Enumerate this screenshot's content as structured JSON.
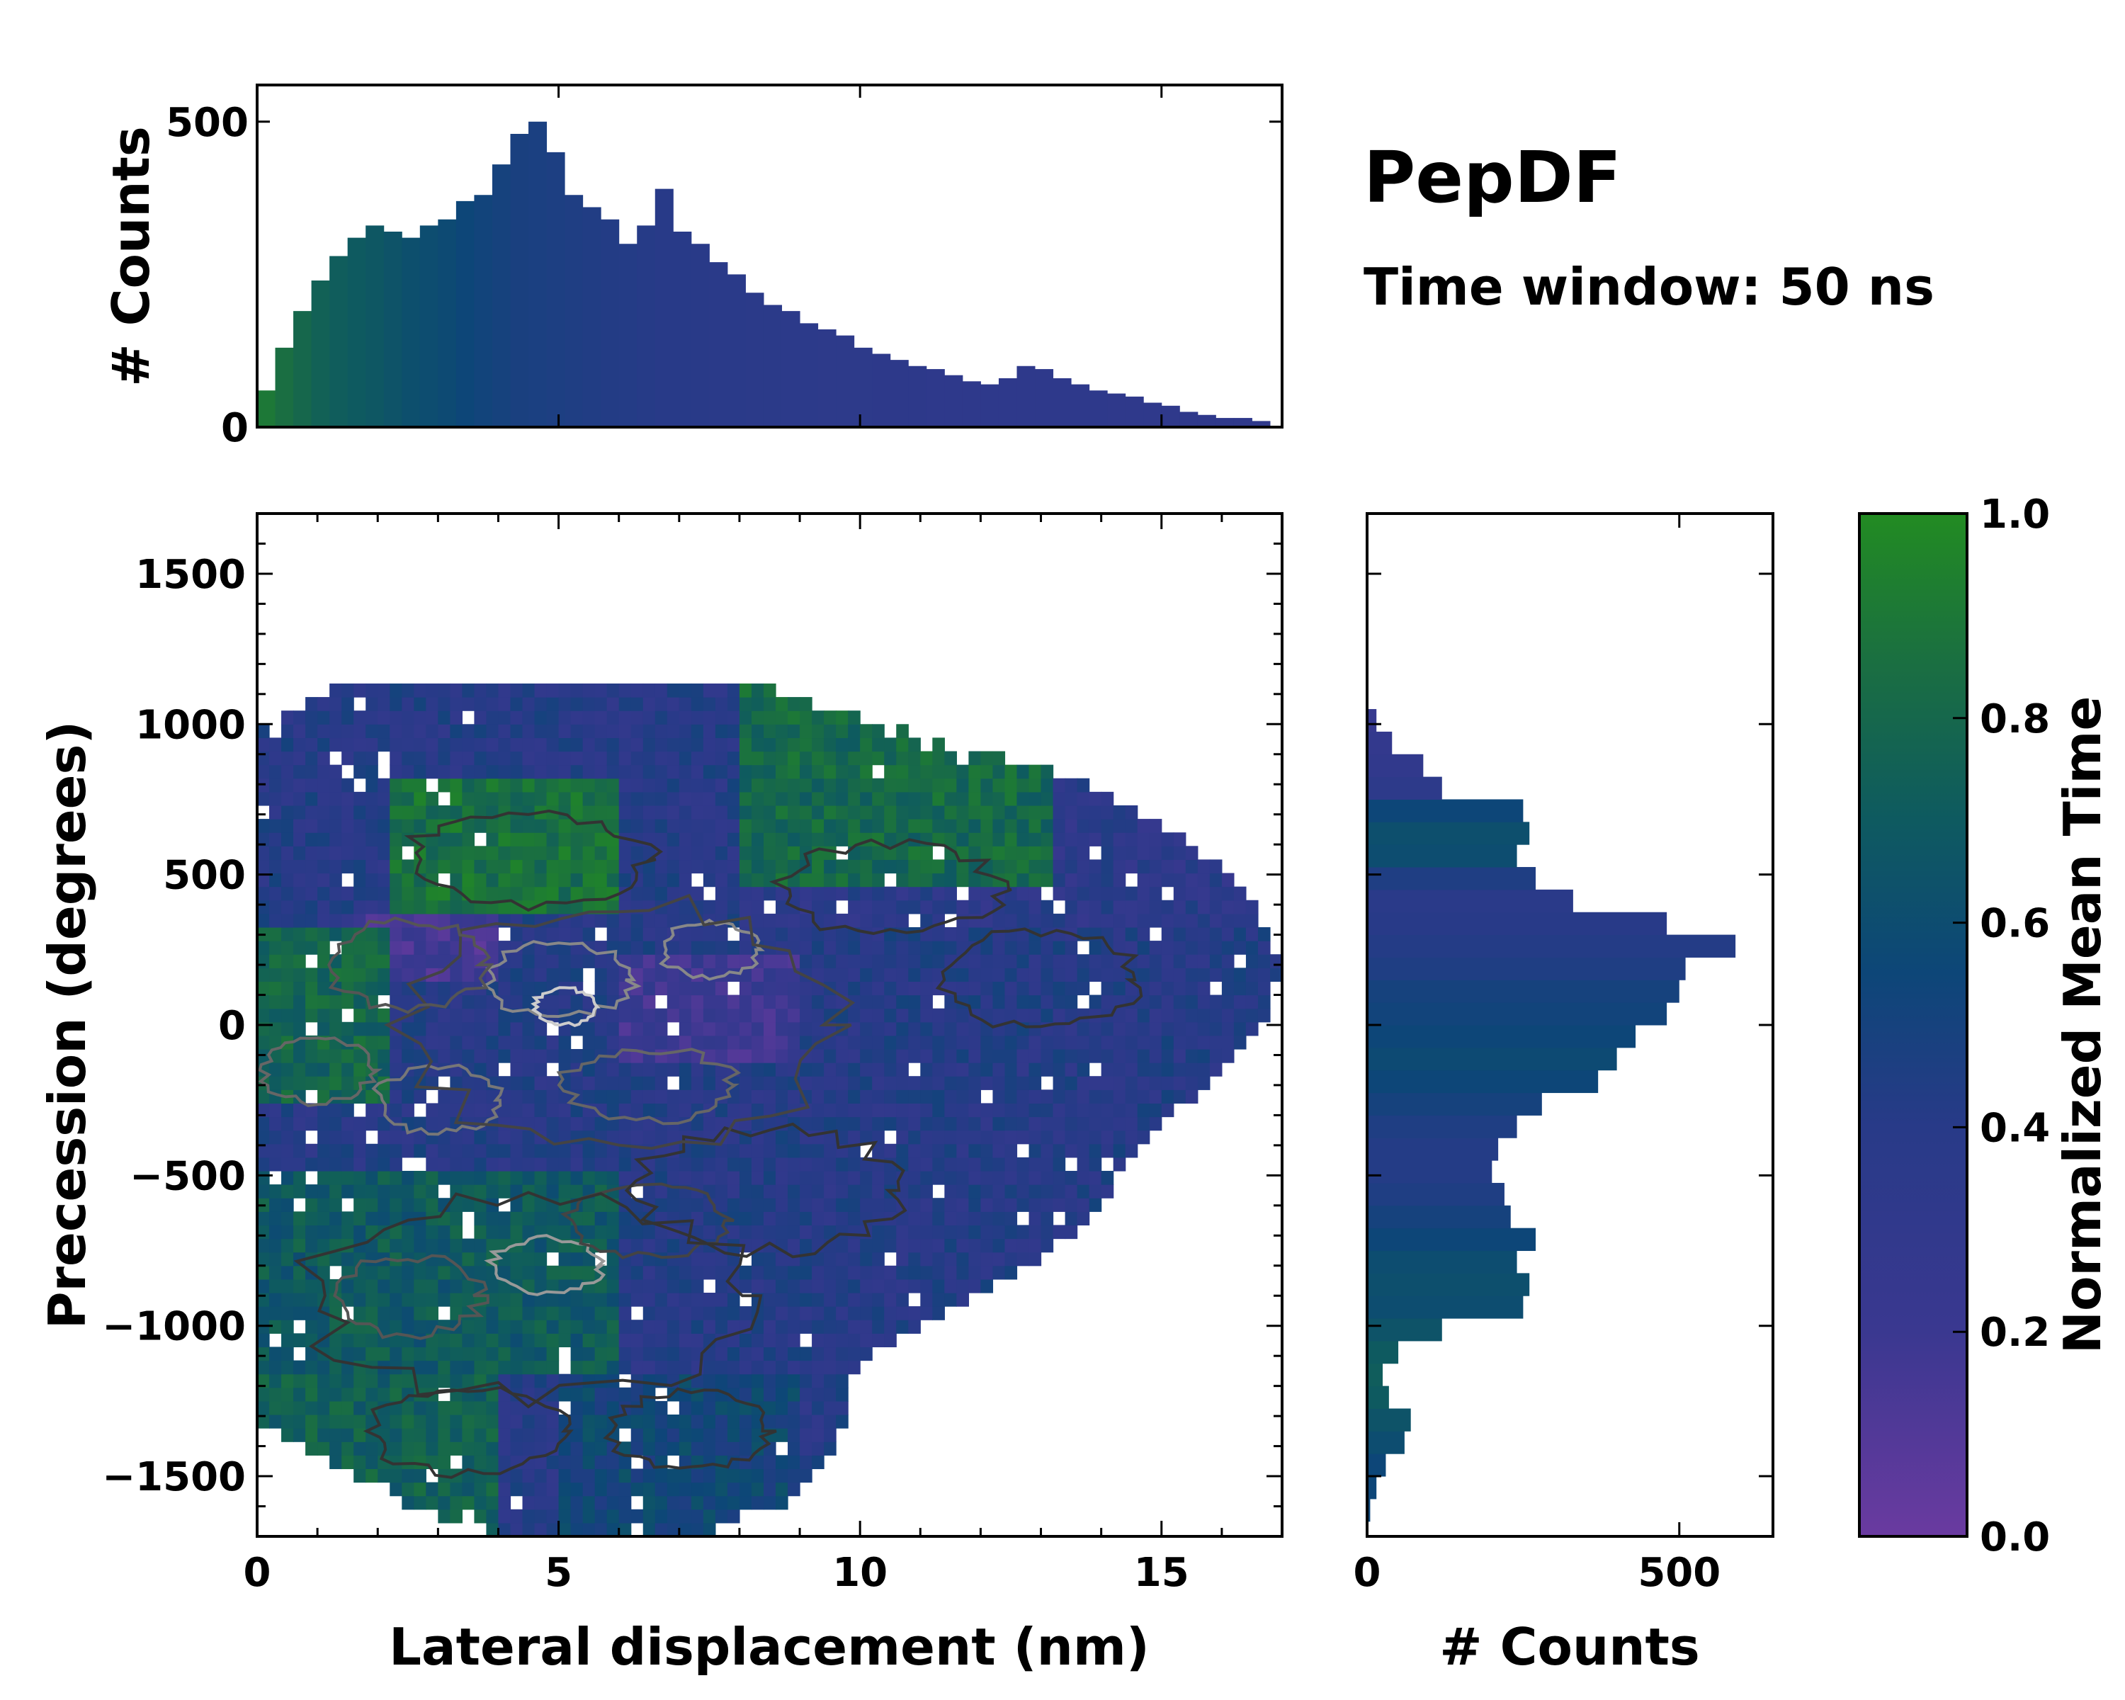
{
  "chart_data": {
    "type": "heatmap",
    "title": "PepDF",
    "subtitle": "Time window: 50 ns",
    "main": {
      "xlabel": "Lateral displacement (nm)",
      "ylabel": "Precession (degrees)",
      "xlim": [
        0,
        17
      ],
      "ylim": [
        -1700,
        1700
      ],
      "xticks": [
        0,
        5,
        10,
        15
      ],
      "xtick_labels": [
        "0",
        "5",
        "10",
        "15"
      ],
      "yticks": [
        -1500,
        -1000,
        -500,
        0,
        500,
        1000,
        1500
      ],
      "ytick_labels": [
        "−1500",
        "−1000",
        "−500",
        "0",
        "500",
        "1000",
        "1500"
      ],
      "contour_note": "density contours"
    },
    "top_hist": {
      "ylabel": "# Counts",
      "ylim": [
        0,
        560
      ],
      "yticks": [
        0,
        500
      ],
      "ytick_labels": [
        "0",
        "500"
      ],
      "x": [
        0.3,
        0.6,
        0.9,
        1.2,
        1.5,
        1.8,
        2.1,
        2.4,
        2.7,
        3.0,
        3.3,
        3.6,
        3.9,
        4.2,
        4.5,
        4.8,
        5.1,
        5.4,
        5.7,
        6.0,
        6.3,
        6.6,
        6.9,
        7.2,
        7.5,
        7.8,
        8.1,
        8.4,
        8.7,
        9.0,
        9.3,
        9.6,
        9.9,
        10.2,
        10.5,
        10.8,
        11.1,
        11.4,
        11.7,
        12.0,
        12.3,
        12.6,
        12.9,
        13.2,
        13.5,
        13.8,
        14.1,
        14.4,
        14.7,
        15.0,
        15.3,
        15.6,
        15.9,
        16.2,
        16.5,
        16.8
      ],
      "values": [
        60,
        130,
        190,
        240,
        280,
        310,
        330,
        320,
        310,
        330,
        340,
        370,
        380,
        430,
        480,
        500,
        450,
        380,
        360,
        340,
        300,
        330,
        390,
        320,
        300,
        270,
        250,
        220,
        200,
        190,
        170,
        160,
        150,
        130,
        120,
        110,
        100,
        95,
        85,
        75,
        70,
        80,
        100,
        95,
        80,
        70,
        60,
        55,
        50,
        40,
        35,
        25,
        20,
        15,
        15,
        10
      ],
      "colors": [
        0.9,
        0.85,
        0.8,
        0.75,
        0.72,
        0.7,
        0.68,
        0.65,
        0.62,
        0.6,
        0.58,
        0.55,
        0.52,
        0.5,
        0.48,
        0.47,
        0.46,
        0.45,
        0.44,
        0.43,
        0.42,
        0.41,
        0.4,
        0.4,
        0.39,
        0.38,
        0.38,
        0.37,
        0.37,
        0.36,
        0.36,
        0.35,
        0.35,
        0.35,
        0.34,
        0.34,
        0.34,
        0.33,
        0.33,
        0.33,
        0.33,
        0.33,
        0.33,
        0.33,
        0.33,
        0.33,
        0.33,
        0.32,
        0.32,
        0.32,
        0.32,
        0.32,
        0.32,
        0.32,
        0.32,
        0.32
      ]
    },
    "right_hist": {
      "xlabel": "# Counts",
      "xlim": [
        0,
        650
      ],
      "xticks": [
        0,
        500
      ],
      "xtick_labels": [
        "0",
        "500"
      ],
      "y": [
        -1650,
        -1575,
        -1500,
        -1425,
        -1350,
        -1275,
        -1200,
        -1125,
        -1050,
        -975,
        -900,
        -825,
        -750,
        -675,
        -600,
        -525,
        -450,
        -375,
        -300,
        -225,
        -150,
        -75,
        0,
        75,
        150,
        225,
        300,
        375,
        450,
        525,
        600,
        675,
        750,
        825,
        900,
        975
      ],
      "values": [
        5,
        15,
        30,
        60,
        70,
        35,
        25,
        50,
        120,
        250,
        260,
        240,
        270,
        230,
        220,
        200,
        210,
        240,
        280,
        370,
        400,
        430,
        480,
        500,
        510,
        590,
        480,
        330,
        270,
        240,
        260,
        250,
        120,
        90,
        40,
        15
      ],
      "colors": [
        0.55,
        0.55,
        0.55,
        0.6,
        0.65,
        0.7,
        0.72,
        0.7,
        0.65,
        0.6,
        0.62,
        0.6,
        0.55,
        0.5,
        0.45,
        0.42,
        0.42,
        0.45,
        0.5,
        0.55,
        0.58,
        0.55,
        0.52,
        0.5,
        0.45,
        0.42,
        0.4,
        0.38,
        0.45,
        0.6,
        0.62,
        0.55,
        0.35,
        0.3,
        0.28,
        0.25
      ]
    },
    "colorbar": {
      "label": "Normalized Mean Time",
      "ticks": [
        0.0,
        0.2,
        0.4,
        0.6,
        0.8,
        1.0
      ],
      "tick_labels": [
        "0.0",
        "0.2",
        "0.4",
        "0.6",
        "0.8",
        "1.0"
      ],
      "colormap": [
        "#6a3aa0",
        "#2c3a8c",
        "#0d4678",
        "#0e5a60",
        "#1c7a3c",
        "#228b22"
      ]
    }
  }
}
